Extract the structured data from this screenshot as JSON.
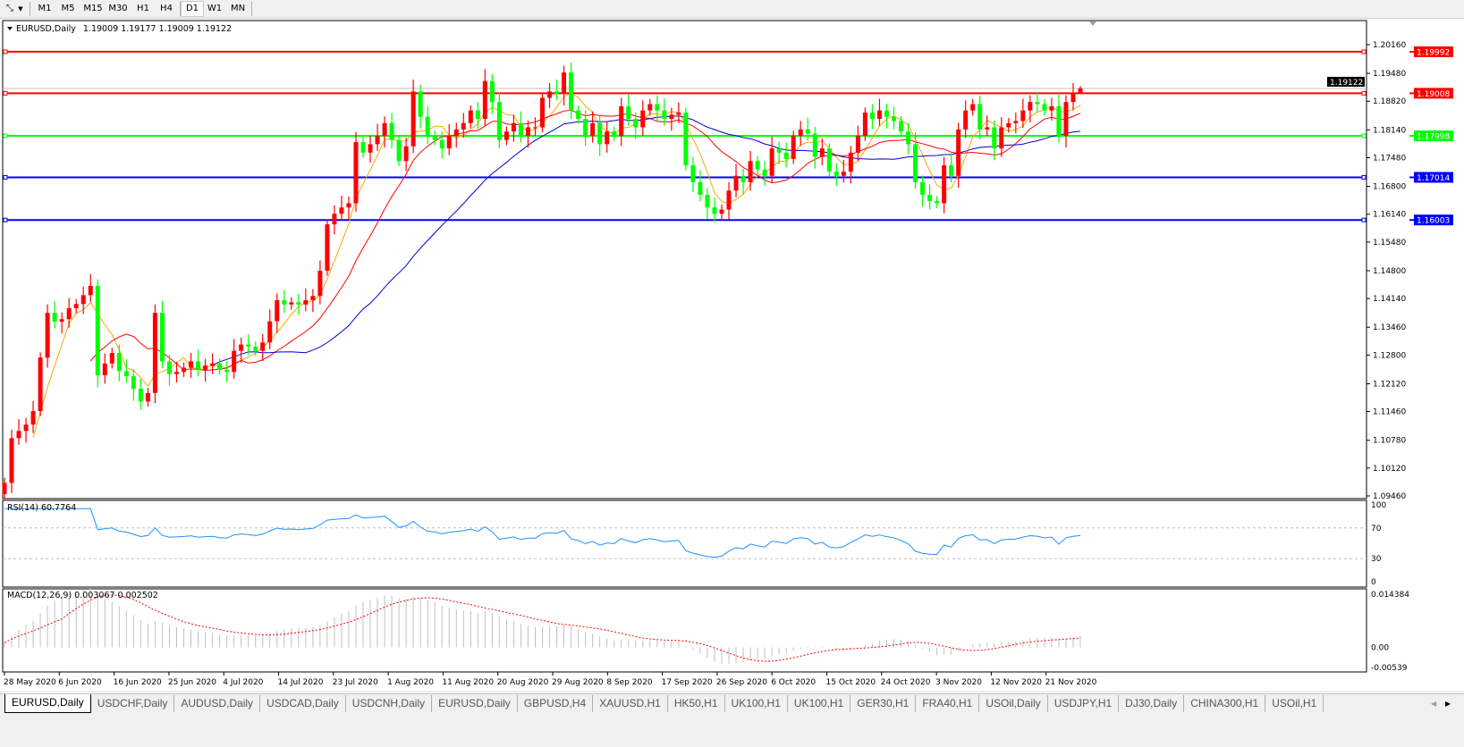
{
  "toolbar": {
    "icon": "line-studies-icon",
    "timeframes": [
      "M1",
      "M5",
      "M15",
      "M30",
      "H1",
      "H4",
      "D1",
      "W1",
      "MN"
    ],
    "active_timeframe": "D1"
  },
  "chart_header": {
    "symbol": "EURUSD,Daily",
    "ohlc_text": "1.19009 1.19177 1.19009 1.19122"
  },
  "colors": {
    "bull_candle": "#ff0000",
    "bear_candle": "#00ff00",
    "ma_fast": "#ffa500",
    "ma_mid": "#ff0000",
    "ma_slow": "#0000cd",
    "rsi_line": "#1e90ff",
    "macd_hist": "#c0c0c0",
    "macd_signal": "#ff0000"
  },
  "chart_data": [
    {
      "type": "candlestick",
      "symbol": "EURUSD,Daily",
      "x_tick_labels": [
        "28 May 2020",
        "6 Jun 2020",
        "16 Jun 2020",
        "25 Jun 2020",
        "4 Jul 2020",
        "14 Jul 2020",
        "23 Jul 2020",
        "1 Aug 2020",
        "11 Aug 2020",
        "20 Aug 2020",
        "29 Aug 2020",
        "8 Sep 2020",
        "17 Sep 2020",
        "26 Sep 2020",
        "6 Oct 2020",
        "15 Oct 2020",
        "24 Oct 2020",
        "3 Nov 2020",
        "12 Nov 2020",
        "21 Nov 2020"
      ],
      "y_tick_labels": [
        "1.20160",
        "1.19480",
        "1.18820",
        "1.18140",
        "1.17480",
        "1.16800",
        "1.16140",
        "1.15480",
        "1.14800",
        "1.14140",
        "1.13460",
        "1.12800",
        "1.12120",
        "1.11460",
        "1.10780",
        "1.10120",
        "1.09460"
      ],
      "ylim": [
        1.0946,
        1.2016
      ],
      "first_open": 1.095,
      "last_bar": {
        "open": 1.19009,
        "high": 1.19177,
        "low": 1.19009,
        "close": 1.19122
      },
      "close": [
        1.0977,
        1.1083,
        1.11,
        1.1115,
        1.1147,
        1.1274,
        1.138,
        1.1359,
        1.1365,
        1.1391,
        1.1401,
        1.1422,
        1.1444,
        1.1232,
        1.126,
        1.1285,
        1.1242,
        1.123,
        1.12,
        1.117,
        1.119,
        1.138,
        1.1265,
        1.1235,
        1.124,
        1.125,
        1.1265,
        1.1245,
        1.1255,
        1.126,
        1.1245,
        1.124,
        1.129,
        1.1305,
        1.13,
        1.129,
        1.131,
        1.136,
        1.141,
        1.14,
        1.1405,
        1.14,
        1.141,
        1.142,
        1.148,
        1.159,
        1.1615,
        1.163,
        1.164,
        1.1785,
        1.176,
        1.178,
        1.18,
        1.183,
        1.179,
        1.174,
        1.1775,
        1.1905,
        1.1845,
        1.18,
        1.179,
        1.177,
        1.18,
        1.1815,
        1.183,
        1.186,
        1.184,
        1.193,
        1.188,
        1.179,
        1.181,
        1.183,
        1.18,
        1.182,
        1.182,
        1.189,
        1.1905,
        1.19,
        1.195,
        1.186,
        1.184,
        1.18,
        1.183,
        1.178,
        1.181,
        1.18,
        1.187,
        1.184,
        1.182,
        1.186,
        1.1875,
        1.186,
        1.184,
        1.185,
        1.1855,
        1.173,
        1.169,
        1.166,
        1.163,
        1.1615,
        1.1625,
        1.167,
        1.1705,
        1.169,
        1.174,
        1.172,
        1.1705,
        1.177,
        1.176,
        1.1745,
        1.18,
        1.1815,
        1.1805,
        1.175,
        1.177,
        1.1715,
        1.1705,
        1.1715,
        1.176,
        1.18,
        1.1855,
        1.184,
        1.186,
        1.1845,
        1.1835,
        1.181,
        1.178,
        1.169,
        1.166,
        1.1645,
        1.164,
        1.173,
        1.1705,
        1.1815,
        1.186,
        1.1875,
        1.1815,
        1.182,
        1.177,
        1.182,
        1.183,
        1.1835,
        1.186,
        1.188,
        1.1875,
        1.186,
        1.187,
        1.18,
        1.188,
        1.19009,
        1.19122
      ],
      "horizontal_lines": [
        {
          "price": "1.19992",
          "color": "#ff0000"
        },
        {
          "price": "1.19008",
          "color": "#ff0000"
        },
        {
          "price": "1.17998",
          "color": "#00ff00"
        },
        {
          "price": "1.17014",
          "color": "#0000ff"
        },
        {
          "price": "1.16003",
          "color": "#0000ff"
        }
      ],
      "current_price": "1.19122",
      "grid": false
    },
    {
      "type": "line",
      "title": "RSI(14) 60.7764",
      "y_tick_labels": [
        "100",
        "70",
        "30",
        "0"
      ],
      "ylim": [
        0,
        100
      ],
      "levels": [
        70,
        30
      ]
    },
    {
      "type": "bar",
      "title": "MACD(12,26,9) 0.003067 0.002502",
      "y_tick_labels": [
        "0.014384",
        "0.00",
        "-0.00539"
      ],
      "ylim": [
        -0.00539,
        0.014384
      ]
    }
  ],
  "tabs": [
    "EURUSD,Daily",
    "USDCHF,Daily",
    "AUDUSD,Daily",
    "USDCAD,Daily",
    "USDCNH,Daily",
    "EURUSD,Daily",
    "GBPUSD,H4",
    "XAUUSD,H1",
    "HK50,H1",
    "UK100,H1",
    "UK100,H1",
    "GER30,H1",
    "FRA40,H1",
    "USOil,Daily",
    "USDJPY,H1",
    "DJ30,Daily",
    "CHINA300,H1",
    "USOil,H1"
  ],
  "active_tab": 0
}
